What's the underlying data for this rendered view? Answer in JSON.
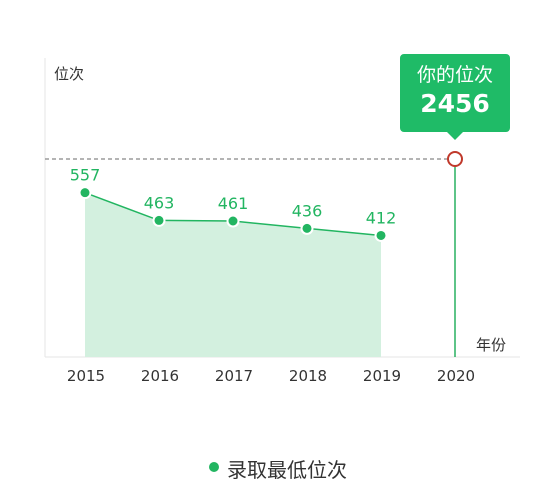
{
  "chart_data": {
    "type": "line",
    "title": "",
    "xlabel": "年份",
    "ylabel": "位次",
    "categories": [
      "2015",
      "2016",
      "2017",
      "2018",
      "2019",
      "2020"
    ],
    "series": [
      {
        "name": "录取最低位次",
        "values": [
          557,
          463,
          461,
          436,
          412,
          null
        ]
      }
    ],
    "ylim": [
      0,
      1000
    ],
    "grid": false,
    "legend_position": "bottom-center",
    "highlight": {
      "category": "2020",
      "label": "你的位次",
      "value": 2456
    }
  },
  "colors": {
    "series": "#22b561",
    "area": "#d3f0df",
    "marker_line": "#28b060",
    "marker_ring": "#c0392b",
    "tooltip_bg": "#1fbb67",
    "dashed": "#888888",
    "axis": "#e6e6e6",
    "text": "#333333"
  }
}
